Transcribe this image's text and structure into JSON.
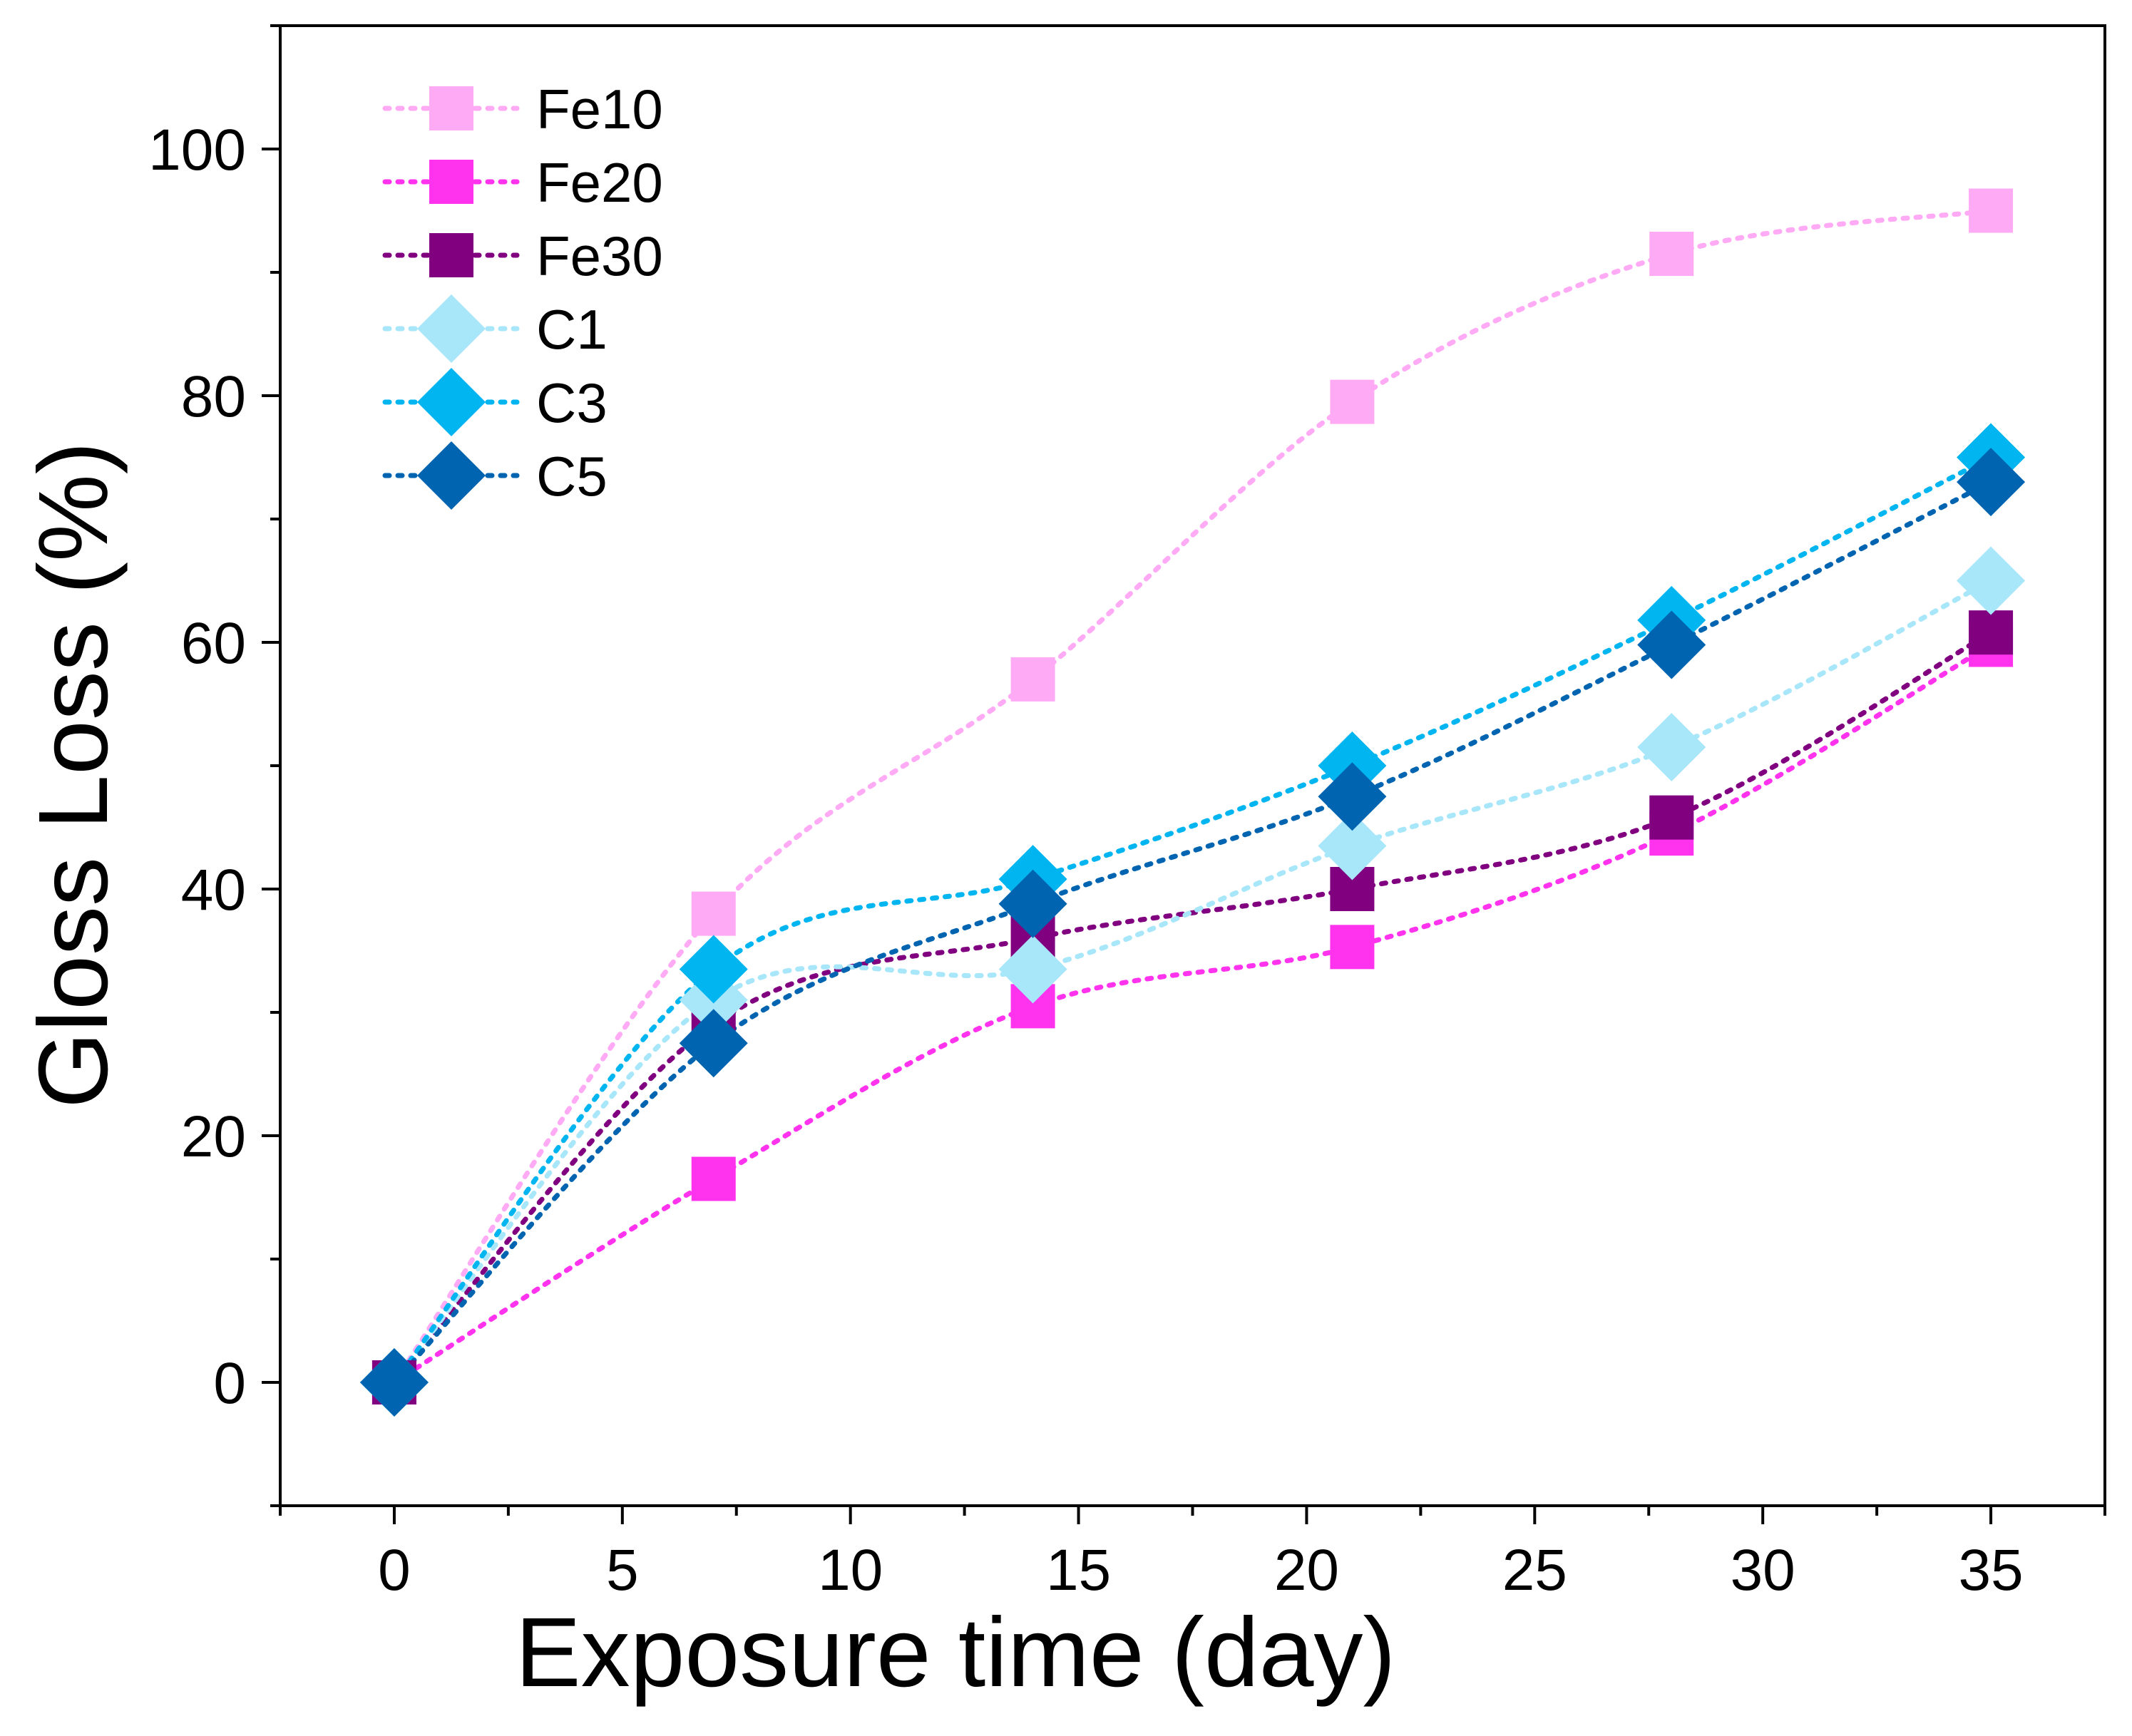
{
  "chart_data": {
    "type": "scatter",
    "title": "",
    "xlabel": "Exposure time (day)",
    "ylabel": "Gloss Loss (%)",
    "xlim": [
      -2.5,
      37.5
    ],
    "ylim": [
      -10,
      110
    ],
    "xticks": [
      0,
      5,
      10,
      15,
      20,
      25,
      30,
      35
    ],
    "yticks": [
      0,
      20,
      40,
      60,
      80,
      100
    ],
    "x_tick_labels": [
      "0",
      "5",
      "10",
      "15",
      "20",
      "25",
      "30",
      "35"
    ],
    "y_tick_labels": [
      "0",
      "20",
      "40",
      "60",
      "80",
      "100"
    ],
    "x_minor_step": 2.5,
    "y_minor_step": 10,
    "legend_position": "top-left",
    "line_style": "dotted spline",
    "series": [
      {
        "name": "Fe10",
        "marker": "square",
        "color": "#ffaaf5",
        "x": [
          0,
          7,
          14,
          21,
          28,
          35
        ],
        "y": [
          0,
          38,
          57,
          79.5,
          91.5,
          95
        ]
      },
      {
        "name": "Fe20",
        "marker": "square",
        "color": "#ff33ee",
        "x": [
          0,
          7,
          14,
          21,
          28,
          35
        ],
        "y": [
          0,
          16.5,
          30.5,
          35.3,
          44.5,
          59.8
        ]
      },
      {
        "name": "Fe30",
        "marker": "square",
        "color": "#800080",
        "x": [
          0,
          7,
          14,
          21,
          28,
          35
        ],
        "y": [
          0,
          29,
          36,
          40,
          45.8,
          60.8
        ]
      },
      {
        "name": "C1",
        "marker": "diamond",
        "color": "#a8e6fa",
        "x": [
          0,
          7,
          14,
          21,
          28,
          35
        ],
        "y": [
          0,
          31,
          33.5,
          43.5,
          51.5,
          65
        ]
      },
      {
        "name": "C3",
        "marker": "diamond",
        "color": "#00b5f0",
        "x": [
          0,
          7,
          14,
          21,
          28,
          35
        ],
        "y": [
          0,
          33.5,
          40.8,
          50,
          61.8,
          75
        ]
      },
      {
        "name": "C5",
        "marker": "diamond",
        "color": "#0064b0",
        "x": [
          0,
          7,
          14,
          21,
          28,
          35
        ],
        "y": [
          0,
          27.5,
          38.8,
          47.5,
          59.8,
          73
        ]
      }
    ]
  }
}
